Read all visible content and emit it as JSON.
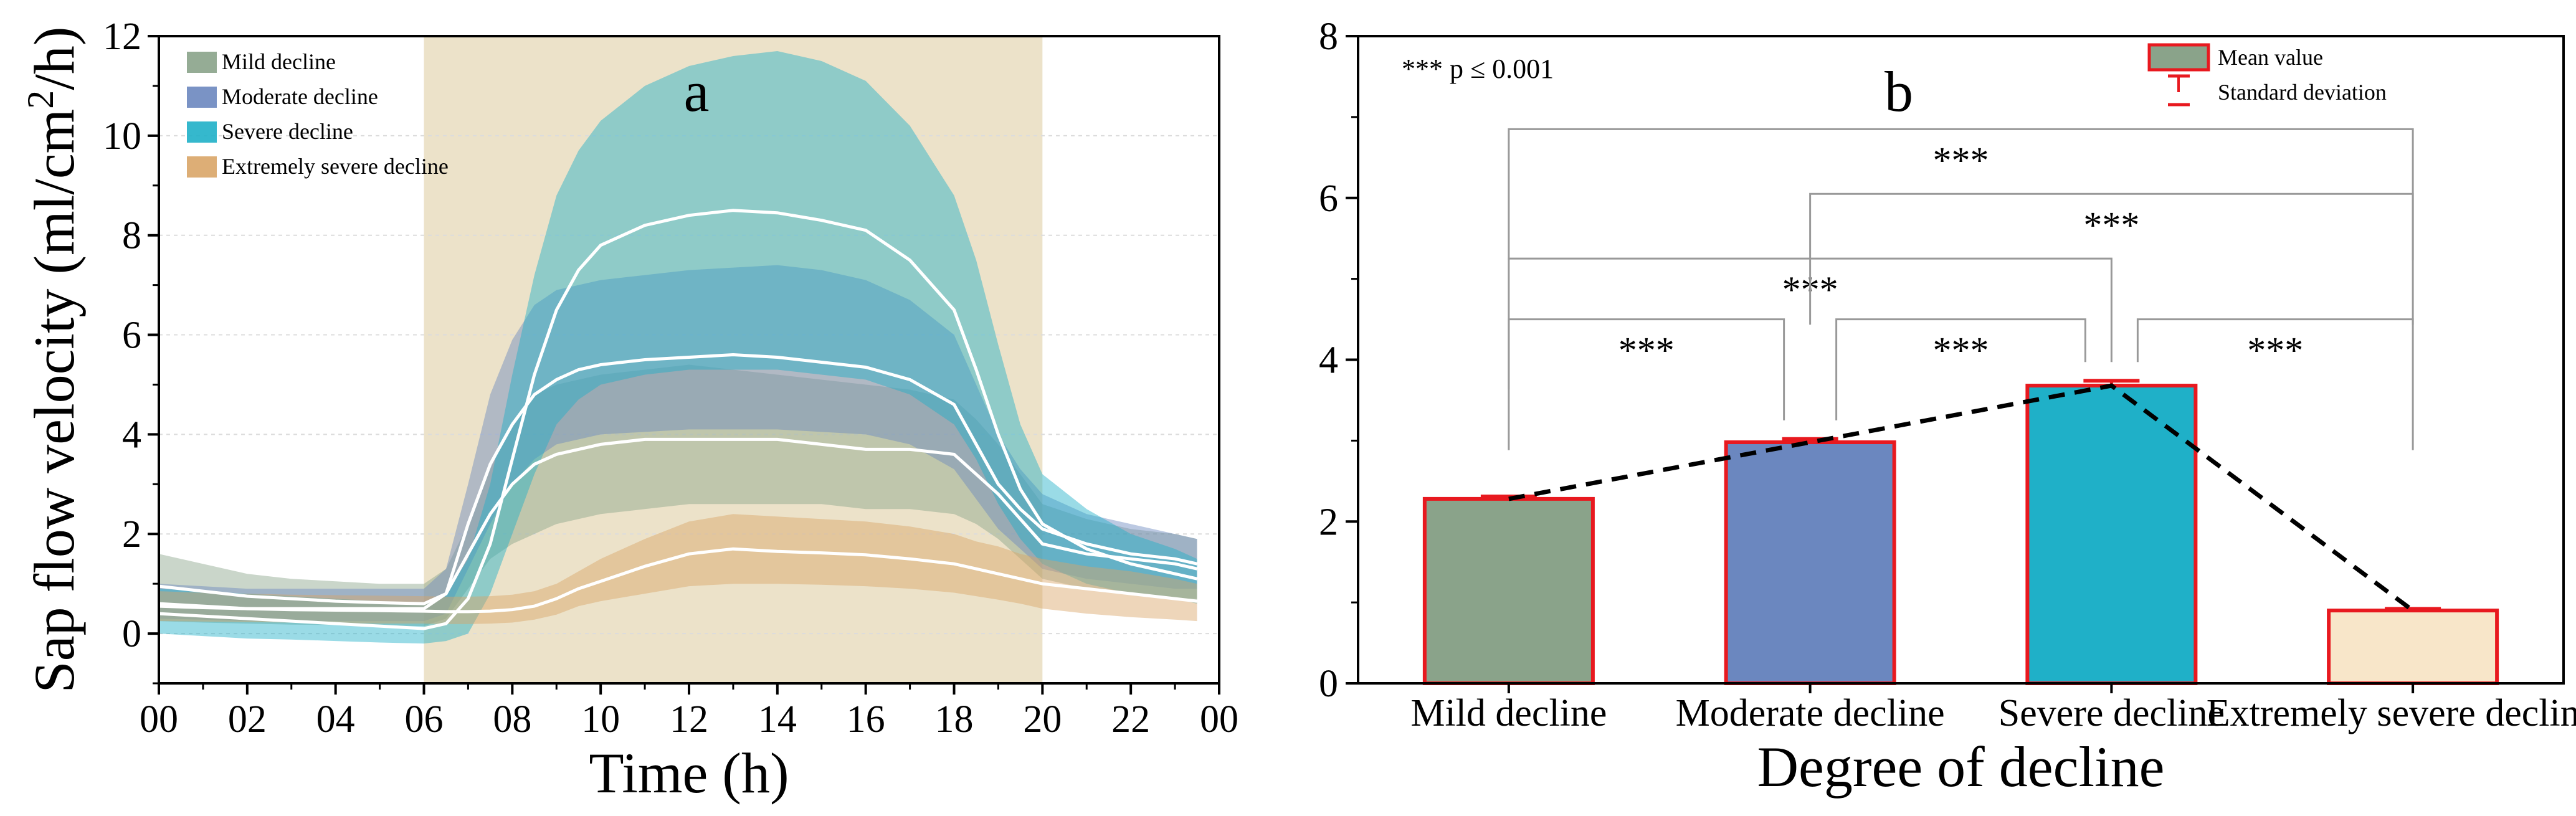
{
  "chart_data": [
    {
      "type": "area",
      "panel_label": "a",
      "xlabel": "Time (h)",
      "ylabel_prefix": "Sap flow velocity (ml/cm",
      "ylabel_sup": "2",
      "ylabel_suffix": "/h)",
      "xlim": [
        0,
        24
      ],
      "ylim": [
        -1,
        12
      ],
      "x_ticks": [
        "00",
        "02",
        "04",
        "06",
        "08",
        "10",
        "12",
        "14",
        "16",
        "18",
        "20",
        "22",
        "00"
      ],
      "y_ticks": [
        "0",
        "2",
        "4",
        "6",
        "8",
        "10",
        "12"
      ],
      "highlight_range": [
        6,
        20
      ],
      "highlight_color": "#ece2c9",
      "legend_position": "top-left",
      "series": [
        {
          "name": "Mild decline",
          "color": "#8aa38a",
          "x": [
            0,
            1,
            2,
            3,
            4,
            5,
            6,
            6.5,
            7,
            7.5,
            8,
            8.5,
            9,
            9.5,
            10,
            11,
            12,
            13,
            14,
            15,
            16,
            17,
            18,
            18.5,
            19,
            19.5,
            20,
            21,
            22,
            23,
            23.5
          ],
          "upper": [
            1.6,
            1.4,
            1.2,
            1.1,
            1.05,
            1.0,
            1.0,
            1.3,
            2.2,
            3.3,
            4.2,
            4.8,
            5.0,
            5.1,
            5.2,
            5.3,
            5.4,
            5.3,
            5.2,
            5.1,
            5.0,
            4.9,
            4.7,
            4.3,
            3.8,
            3.2,
            2.6,
            2.3,
            2.1,
            2.0,
            1.9
          ],
          "mean": [
            0.95,
            0.85,
            0.75,
            0.7,
            0.65,
            0.62,
            0.6,
            0.8,
            1.6,
            2.4,
            3.0,
            3.4,
            3.6,
            3.7,
            3.8,
            3.9,
            3.9,
            3.9,
            3.9,
            3.8,
            3.7,
            3.7,
            3.6,
            3.2,
            2.8,
            2.3,
            1.8,
            1.6,
            1.5,
            1.4,
            1.3
          ],
          "lower": [
            0.25,
            0.22,
            0.2,
            0.18,
            0.17,
            0.16,
            0.15,
            0.3,
            0.9,
            1.5,
            1.8,
            2.0,
            2.2,
            2.3,
            2.4,
            2.5,
            2.6,
            2.6,
            2.6,
            2.6,
            2.5,
            2.5,
            2.4,
            2.2,
            1.9,
            1.5,
            1.1,
            0.9,
            0.8,
            0.7,
            0.7
          ]
        },
        {
          "name": "Moderate decline",
          "color": "#6b87bf",
          "x": [
            0,
            1,
            2,
            3,
            4,
            5,
            6,
            6.5,
            7,
            7.5,
            8,
            8.5,
            9,
            9.5,
            10,
            11,
            12,
            13,
            14,
            15,
            16,
            17,
            18,
            18.5,
            19,
            19.5,
            20,
            21,
            22,
            23,
            23.5
          ],
          "upper": [
            1.0,
            0.95,
            0.9,
            0.9,
            0.9,
            0.9,
            0.9,
            1.3,
            3.0,
            4.8,
            5.9,
            6.6,
            6.9,
            7.0,
            7.1,
            7.2,
            7.3,
            7.35,
            7.4,
            7.3,
            7.1,
            6.7,
            6.0,
            5.0,
            4.0,
            3.3,
            2.8,
            2.4,
            2.2,
            2.0,
            1.9
          ],
          "mean": [
            0.6,
            0.55,
            0.5,
            0.5,
            0.5,
            0.5,
            0.5,
            0.8,
            2.2,
            3.4,
            4.2,
            4.8,
            5.1,
            5.3,
            5.4,
            5.5,
            5.55,
            5.6,
            5.55,
            5.45,
            5.35,
            5.1,
            4.6,
            3.8,
            3.0,
            2.5,
            2.1,
            1.8,
            1.6,
            1.5,
            1.4
          ],
          "lower": [
            0.3,
            0.28,
            0.25,
            0.25,
            0.25,
            0.25,
            0.25,
            0.4,
            1.3,
            2.2,
            3.0,
            3.5,
            3.8,
            3.9,
            4.0,
            4.05,
            4.1,
            4.1,
            4.1,
            4.05,
            4.0,
            3.8,
            3.3,
            2.7,
            2.1,
            1.7,
            1.3,
            1.1,
            1.0,
            0.9,
            0.9
          ]
        },
        {
          "name": "Severe decline",
          "color": "#1fb0c8",
          "x": [
            0,
            1,
            2,
            3,
            4,
            5,
            6,
            6.5,
            7,
            7.5,
            8,
            8.5,
            9,
            9.5,
            10,
            11,
            12,
            13,
            14,
            15,
            16,
            17,
            18,
            18.5,
            19,
            19.5,
            20,
            21,
            22,
            23,
            23.5
          ],
          "upper": [
            0.9,
            0.85,
            0.8,
            0.75,
            0.7,
            0.65,
            0.6,
            0.8,
            1.5,
            3.0,
            5.2,
            7.2,
            8.8,
            9.7,
            10.3,
            11.0,
            11.4,
            11.6,
            11.7,
            11.5,
            11.1,
            10.2,
            8.8,
            7.5,
            5.8,
            4.2,
            3.2,
            2.5,
            2.0,
            1.7,
            1.5
          ],
          "mean": [
            0.4,
            0.35,
            0.3,
            0.25,
            0.2,
            0.15,
            0.1,
            0.2,
            0.7,
            1.8,
            3.5,
            5.2,
            6.5,
            7.3,
            7.8,
            8.2,
            8.4,
            8.5,
            8.45,
            8.3,
            8.1,
            7.5,
            6.5,
            5.3,
            4.0,
            2.9,
            2.2,
            1.7,
            1.4,
            1.2,
            1.1
          ],
          "lower": [
            0.0,
            -0.05,
            -0.1,
            -0.12,
            -0.15,
            -0.18,
            -0.2,
            -0.15,
            0.0,
            0.8,
            2.0,
            3.2,
            4.2,
            4.7,
            5.0,
            5.2,
            5.3,
            5.3,
            5.3,
            5.2,
            5.1,
            4.8,
            4.2,
            3.5,
            2.6,
            1.9,
            1.4,
            1.0,
            0.8,
            0.7,
            0.6
          ]
        },
        {
          "name": "Extremely severe decline",
          "color": "#d9a567",
          "x": [
            0,
            1,
            2,
            3,
            4,
            5,
            6,
            6.5,
            7,
            7.5,
            8,
            8.5,
            9,
            9.5,
            10,
            11,
            12,
            13,
            14,
            15,
            16,
            17,
            18,
            18.5,
            19,
            19.5,
            20,
            21,
            22,
            23,
            23.5
          ],
          "upper": [
            0.85,
            0.82,
            0.8,
            0.78,
            0.77,
            0.76,
            0.75,
            0.74,
            0.74,
            0.75,
            0.78,
            0.85,
            1.0,
            1.25,
            1.5,
            1.9,
            2.25,
            2.4,
            2.35,
            2.3,
            2.25,
            2.15,
            2.0,
            1.85,
            1.75,
            1.6,
            1.5,
            1.35,
            1.25,
            1.1,
            1.0
          ],
          "mean": [
            0.55,
            0.52,
            0.5,
            0.48,
            0.47,
            0.46,
            0.45,
            0.44,
            0.44,
            0.45,
            0.48,
            0.55,
            0.7,
            0.9,
            1.05,
            1.35,
            1.6,
            1.7,
            1.65,
            1.62,
            1.58,
            1.5,
            1.4,
            1.3,
            1.2,
            1.1,
            1.0,
            0.9,
            0.8,
            0.7,
            0.65
          ],
          "lower": [
            0.25,
            0.24,
            0.23,
            0.22,
            0.21,
            0.2,
            0.2,
            0.19,
            0.19,
            0.2,
            0.22,
            0.28,
            0.38,
            0.55,
            0.65,
            0.8,
            0.95,
            1.0,
            1.0,
            0.98,
            0.95,
            0.9,
            0.82,
            0.75,
            0.68,
            0.6,
            0.5,
            0.4,
            0.33,
            0.28,
            0.25
          ]
        }
      ]
    },
    {
      "type": "bar",
      "panel_label": "b",
      "xlabel": "Degree of decline",
      "ylim": [
        0,
        8
      ],
      "y_ticks": [
        "0",
        "2",
        "4",
        "6",
        "8"
      ],
      "categories": [
        "Mild decline",
        "Moderate decline",
        "Severe decline",
        "Extremely severe decline"
      ],
      "values": [
        2.28,
        2.98,
        3.68,
        0.9
      ],
      "std": [
        0.03,
        0.04,
        0.06,
        0.02
      ],
      "colors": [
        "#8aa38a",
        "#6b87bf",
        "#1fb0c8",
        "#f8e6c9"
      ],
      "edge_color": "#e8191f",
      "trend_line": "dashed",
      "p_note": "*** p ≤ 0.001",
      "legend_position": "top-right",
      "legend": {
        "mean": "Mean value",
        "std": "Standard deviation"
      },
      "significance": [
        {
          "from": 0,
          "to": 1,
          "level": 4.5,
          "label": "***"
        },
        {
          "from": 1,
          "to": 2,
          "level": 4.5,
          "label": "***"
        },
        {
          "from": 2,
          "to": 3,
          "level": 4.5,
          "label": "***"
        },
        {
          "from": 0,
          "to": 2,
          "level": 5.25,
          "label": "***"
        },
        {
          "from": 1,
          "to": 3,
          "level": 6.05,
          "label": "***"
        },
        {
          "from": 0,
          "to": 3,
          "level": 6.85,
          "label": "***"
        }
      ]
    }
  ]
}
